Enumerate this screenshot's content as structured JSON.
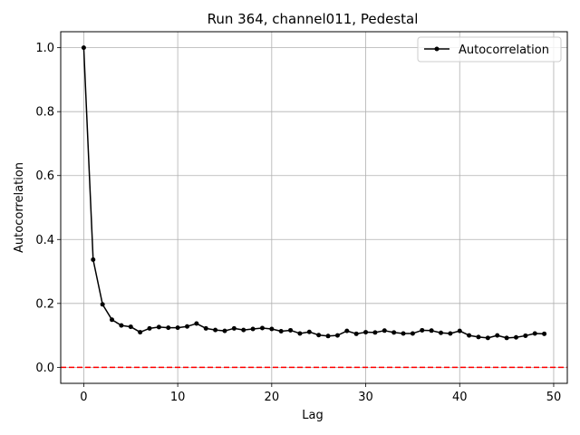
{
  "chart_data": {
    "type": "line",
    "title": "Run 364, channel011, Pedestal",
    "xlabel": "Lag",
    "ylabel": "Autocorrelation",
    "xlim": [
      -2.45,
      51.45
    ],
    "ylim": [
      -0.05,
      1.05
    ],
    "xticks": [
      0,
      10,
      20,
      30,
      40,
      50
    ],
    "yticks": [
      0.0,
      0.2,
      0.4,
      0.6,
      0.8,
      1.0
    ],
    "xtick_labels": [
      "0",
      "10",
      "20",
      "30",
      "40",
      "50"
    ],
    "ytick_labels": [
      "0.0",
      "0.2",
      "0.4",
      "0.6",
      "0.8",
      "1.0"
    ],
    "grid": true,
    "legend_position": "top-right",
    "series": [
      {
        "name": "Autocorrelation",
        "color": "#000000",
        "marker": "circle",
        "x": [
          0,
          1,
          2,
          3,
          4,
          5,
          6,
          7,
          8,
          9,
          10,
          11,
          12,
          13,
          14,
          15,
          16,
          17,
          18,
          19,
          20,
          21,
          22,
          23,
          24,
          25,
          26,
          27,
          28,
          29,
          30,
          31,
          32,
          33,
          34,
          35,
          36,
          37,
          38,
          39,
          40,
          41,
          42,
          43,
          44,
          45,
          46,
          47,
          48,
          49
        ],
        "values": [
          1.0,
          0.337,
          0.197,
          0.149,
          0.131,
          0.127,
          0.11,
          0.122,
          0.126,
          0.124,
          0.124,
          0.128,
          0.137,
          0.122,
          0.117,
          0.114,
          0.122,
          0.117,
          0.12,
          0.123,
          0.12,
          0.113,
          0.116,
          0.106,
          0.111,
          0.101,
          0.098,
          0.1,
          0.114,
          0.105,
          0.11,
          0.109,
          0.115,
          0.109,
          0.106,
          0.106,
          0.116,
          0.115,
          0.108,
          0.106,
          0.114,
          0.1,
          0.095,
          0.092,
          0.1,
          0.092,
          0.094,
          0.099,
          0.106,
          0.105
        ]
      }
    ],
    "reference_line": {
      "y": 0.0,
      "color": "#ff0000",
      "style": "dashed"
    }
  }
}
